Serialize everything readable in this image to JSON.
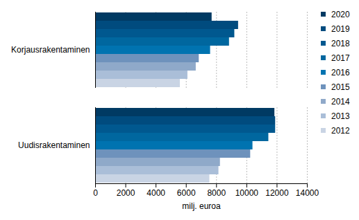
{
  "chart_data": {
    "type": "bar",
    "orientation": "horizontal",
    "categories": [
      "Korjausrakentaminen",
      "Uudisrakentaminen"
    ],
    "series": [
      {
        "name": "2020",
        "color": "#003a63",
        "values": [
          7700,
          11850
        ]
      },
      {
        "name": "2019",
        "color": "#004b7e",
        "values": [
          9450,
          11900
        ]
      },
      {
        "name": "2018",
        "color": "#00588f",
        "values": [
          9200,
          11900
        ]
      },
      {
        "name": "2017",
        "color": "#00679f",
        "values": [
          8850,
          11450
        ]
      },
      {
        "name": "2016",
        "color": "#0073b0",
        "values": [
          7600,
          10400
        ]
      },
      {
        "name": "2015",
        "color": "#6e92bc",
        "values": [
          6850,
          10250
        ]
      },
      {
        "name": "2014",
        "color": "#8fa9c9",
        "values": [
          6650,
          8250
        ]
      },
      {
        "name": "2013",
        "color": "#aabed8",
        "values": [
          6100,
          8150
        ]
      },
      {
        "name": "2012",
        "color": "#c9d4e4",
        "values": [
          5600,
          7550
        ]
      }
    ],
    "xlabel": "milj. euroa",
    "xlim": [
      0,
      14000
    ],
    "xticks": [
      0,
      2000,
      4000,
      6000,
      8000,
      10000,
      12000,
      14000
    ],
    "grid": true,
    "legend": "right"
  }
}
